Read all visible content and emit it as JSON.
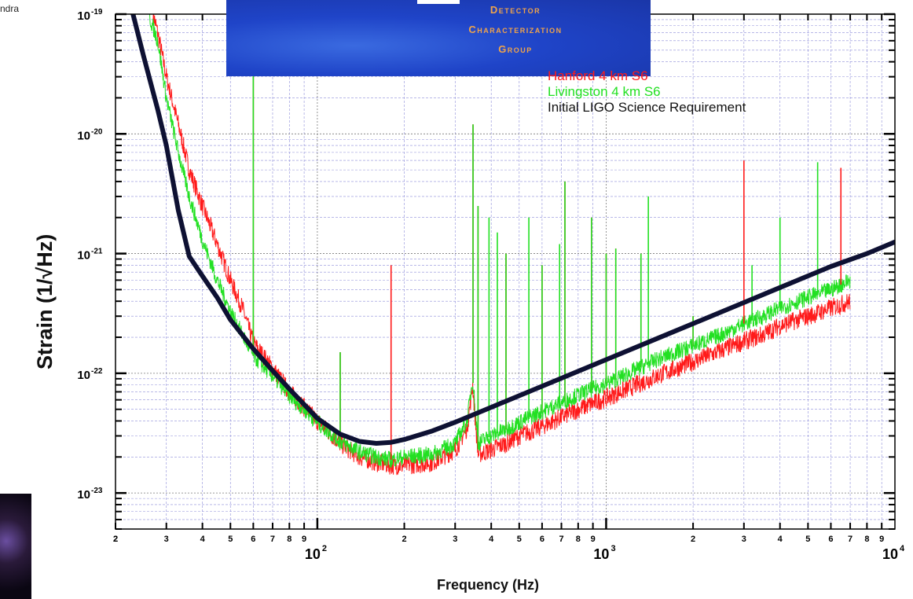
{
  "page": {
    "crop_text": "ndra"
  },
  "banner": {
    "lines": [
      "Detector",
      "Characterization",
      "Group"
    ]
  },
  "chart_data": {
    "type": "line",
    "title": "",
    "xlabel": "Frequency (Hz)",
    "ylabel": "Strain (1/√Hz)",
    "x_scale": "log",
    "y_scale": "log",
    "xlim": [
      20,
      10000
    ],
    "ylim": [
      5e-24,
      1e-19
    ],
    "x_major_ticks": [
      {
        "value": 100,
        "label": "10",
        "exp": "2"
      },
      {
        "value": 1000,
        "label": "10",
        "exp": "3"
      },
      {
        "value": 10000,
        "label": "10",
        "exp": "4"
      }
    ],
    "x_minor_labels": [
      "2",
      "3",
      "4",
      "5",
      "6",
      "7",
      "8",
      "9"
    ],
    "y_major_ticks": [
      {
        "value": 1e-19,
        "label": "10",
        "exp": "-19"
      },
      {
        "value": 1e-20,
        "label": "10",
        "exp": "-20"
      },
      {
        "value": 1e-21,
        "label": "10",
        "exp": "-21"
      },
      {
        "value": 1e-22,
        "label": "10",
        "exp": "-22"
      },
      {
        "value": 1e-23,
        "label": "10",
        "exp": "-23"
      }
    ],
    "grid": true,
    "legend_position": "top-right",
    "series": [
      {
        "name": "Hanford 4 km S6",
        "color": "#ff1a1a",
        "x": [
          27,
          28,
          30,
          33,
          36,
          40,
          45,
          50,
          55,
          60,
          70,
          80,
          90,
          100,
          120,
          140,
          160,
          180,
          200,
          250,
          300,
          330,
          345,
          360,
          400,
          450,
          500,
          600,
          700,
          800,
          1000,
          1200,
          1500,
          2000,
          2500,
          3000,
          3500,
          4000,
          5000,
          6000,
          7000
        ],
        "y": [
          1e-19,
          7e-20,
          3e-20,
          1.2e-20,
          5e-21,
          2.5e-21,
          1.2e-21,
          6e-22,
          3.5e-22,
          1.8e-22,
          1.1e-22,
          7e-23,
          5.2e-23,
          4e-23,
          2.6e-23,
          2e-23,
          1.8e-23,
          1.7e-23,
          1.7e-23,
          1.8e-23,
          2.3e-23,
          3.5e-23,
          8e-23,
          2.1e-23,
          2.3e-23,
          2.6e-23,
          3e-23,
          3.6e-23,
          4.3e-23,
          5e-23,
          6.2e-23,
          7.5e-23,
          9.5e-23,
          1.25e-22,
          1.55e-22,
          1.85e-22,
          2.1e-22,
          2.5e-22,
          3e-22,
          3.5e-22,
          4e-22
        ]
      },
      {
        "name": "Livingston 4 km S6",
        "color": "#22e022",
        "x": [
          26,
          28,
          30,
          33,
          36,
          40,
          45,
          50,
          55,
          60,
          70,
          80,
          90,
          100,
          120,
          140,
          160,
          180,
          200,
          250,
          300,
          330,
          345,
          360,
          400,
          450,
          500,
          600,
          700,
          800,
          1000,
          1200,
          1500,
          2000,
          2500,
          3000,
          3500,
          4000,
          5000,
          6000,
          7000
        ],
        "y": [
          1e-19,
          6e-20,
          2e-20,
          7e-21,
          3e-21,
          1.3e-21,
          6e-22,
          3.3e-22,
          2.1e-22,
          1.4e-22,
          9.5e-23,
          6.5e-23,
          5e-23,
          3.9e-23,
          2.7e-23,
          2.2e-23,
          2e-23,
          1.9e-23,
          2e-23,
          2.1e-23,
          2.6e-23,
          4e-23,
          9e-23,
          2.6e-23,
          3e-23,
          3.4e-23,
          3.9e-23,
          4.8e-23,
          5.7e-23,
          6.6e-23,
          8.2e-23,
          1e-22,
          1.3e-22,
          1.7e-22,
          2.1e-22,
          2.6e-22,
          3e-22,
          3.5e-22,
          4.3e-22,
          5e-22,
          6e-22
        ]
      },
      {
        "name": "Initial LIGO Science Requirement",
        "color": "#0e1133",
        "x": [
          23,
          25,
          28,
          30,
          33,
          36,
          40,
          45,
          50,
          60,
          70,
          80,
          100,
          120,
          140,
          160,
          180,
          200,
          250,
          300,
          400,
          500,
          700,
          1000,
          1500,
          2000,
          3000,
          4000,
          6000,
          8000,
          10000
        ],
        "y": [
          1e-19,
          4.5e-20,
          1.6e-20,
          8e-21,
          2.3e-21,
          9.5e-22,
          6.5e-22,
          4.3e-22,
          2.8e-22,
          1.6e-22,
          1.05e-22,
          7.4e-23,
          4.2e-23,
          3.1e-23,
          2.7e-23,
          2.6e-23,
          2.65e-23,
          2.8e-23,
          3.3e-23,
          3.9e-23,
          5.2e-23,
          6.5e-23,
          9.1e-23,
          1.3e-22,
          1.95e-22,
          2.6e-22,
          3.9e-22,
          5.2e-22,
          7.8e-22,
          1e-21,
          1.25e-21
        ]
      }
    ],
    "peaks": [
      {
        "f": 60,
        "y": 4e-20,
        "series": "both"
      },
      {
        "f": 120,
        "y": 1.5e-22,
        "series": "both"
      },
      {
        "f": 180,
        "y": 8e-22,
        "series": "Hanford 4 km S6"
      },
      {
        "f": 346,
        "y": 1.2e-20,
        "series": "both"
      },
      {
        "f": 360,
        "y": 2.5e-21,
        "series": "both"
      },
      {
        "f": 393,
        "y": 2e-21,
        "series": "Livingston 4 km S6"
      },
      {
        "f": 420,
        "y": 1.5e-21,
        "series": "Livingston 4 km S6"
      },
      {
        "f": 450,
        "y": 1e-21,
        "series": "both"
      },
      {
        "f": 540,
        "y": 2e-21,
        "series": "Livingston 4 km S6"
      },
      {
        "f": 600,
        "y": 8e-22,
        "series": "both"
      },
      {
        "f": 690,
        "y": 1.2e-21,
        "series": "Livingston 4 km S6"
      },
      {
        "f": 720,
        "y": 4e-21,
        "series": "both"
      },
      {
        "f": 890,
        "y": 2e-21,
        "series": "both"
      },
      {
        "f": 1000,
        "y": 1e-21,
        "series": "both"
      },
      {
        "f": 1080,
        "y": 1.1e-21,
        "series": "both"
      },
      {
        "f": 1320,
        "y": 1e-21,
        "series": "both"
      },
      {
        "f": 1400,
        "y": 3e-21,
        "series": "Livingston 4 km S6"
      },
      {
        "f": 2000,
        "y": 3e-22,
        "series": "both"
      },
      {
        "f": 3000,
        "y": 6e-21,
        "series": "Hanford 4 km S6"
      },
      {
        "f": 3200,
        "y": 8e-22,
        "series": "Livingston 4 km S6"
      },
      {
        "f": 4000,
        "y": 2e-21,
        "series": "Livingston 4 km S6"
      },
      {
        "f": 5400,
        "y": 5.8e-21,
        "series": "Livingston 4 km S6"
      },
      {
        "f": 6500,
        "y": 5.2e-21,
        "series": "Hanford 4 km S6"
      }
    ]
  }
}
